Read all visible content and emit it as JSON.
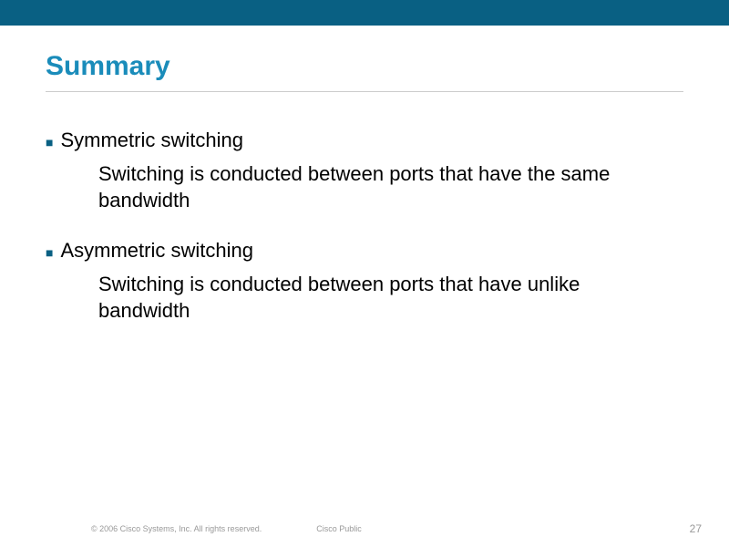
{
  "colors": {
    "top_bar": "#096083",
    "title_color": "#1a8cba",
    "bullet_color": "#096083",
    "text_color": "#000000",
    "footer_color": "#999999",
    "underline_color": "#cccccc",
    "background": "#ffffff"
  },
  "title": "Summary",
  "bullets": [
    {
      "heading": "Symmetric switching",
      "description": "Switching is conducted between ports that have the same bandwidth"
    },
    {
      "heading": "Asymmetric switching",
      "description": "Switching is conducted between ports that have unlike bandwidth"
    }
  ],
  "footer": {
    "copyright": "© 2006 Cisco Systems, Inc. All rights reserved.",
    "label": "Cisco Public",
    "page_number": "27"
  },
  "typography": {
    "title_fontsize": 30,
    "body_fontsize": 22,
    "footer_fontsize": 9,
    "page_fontsize": 12
  }
}
